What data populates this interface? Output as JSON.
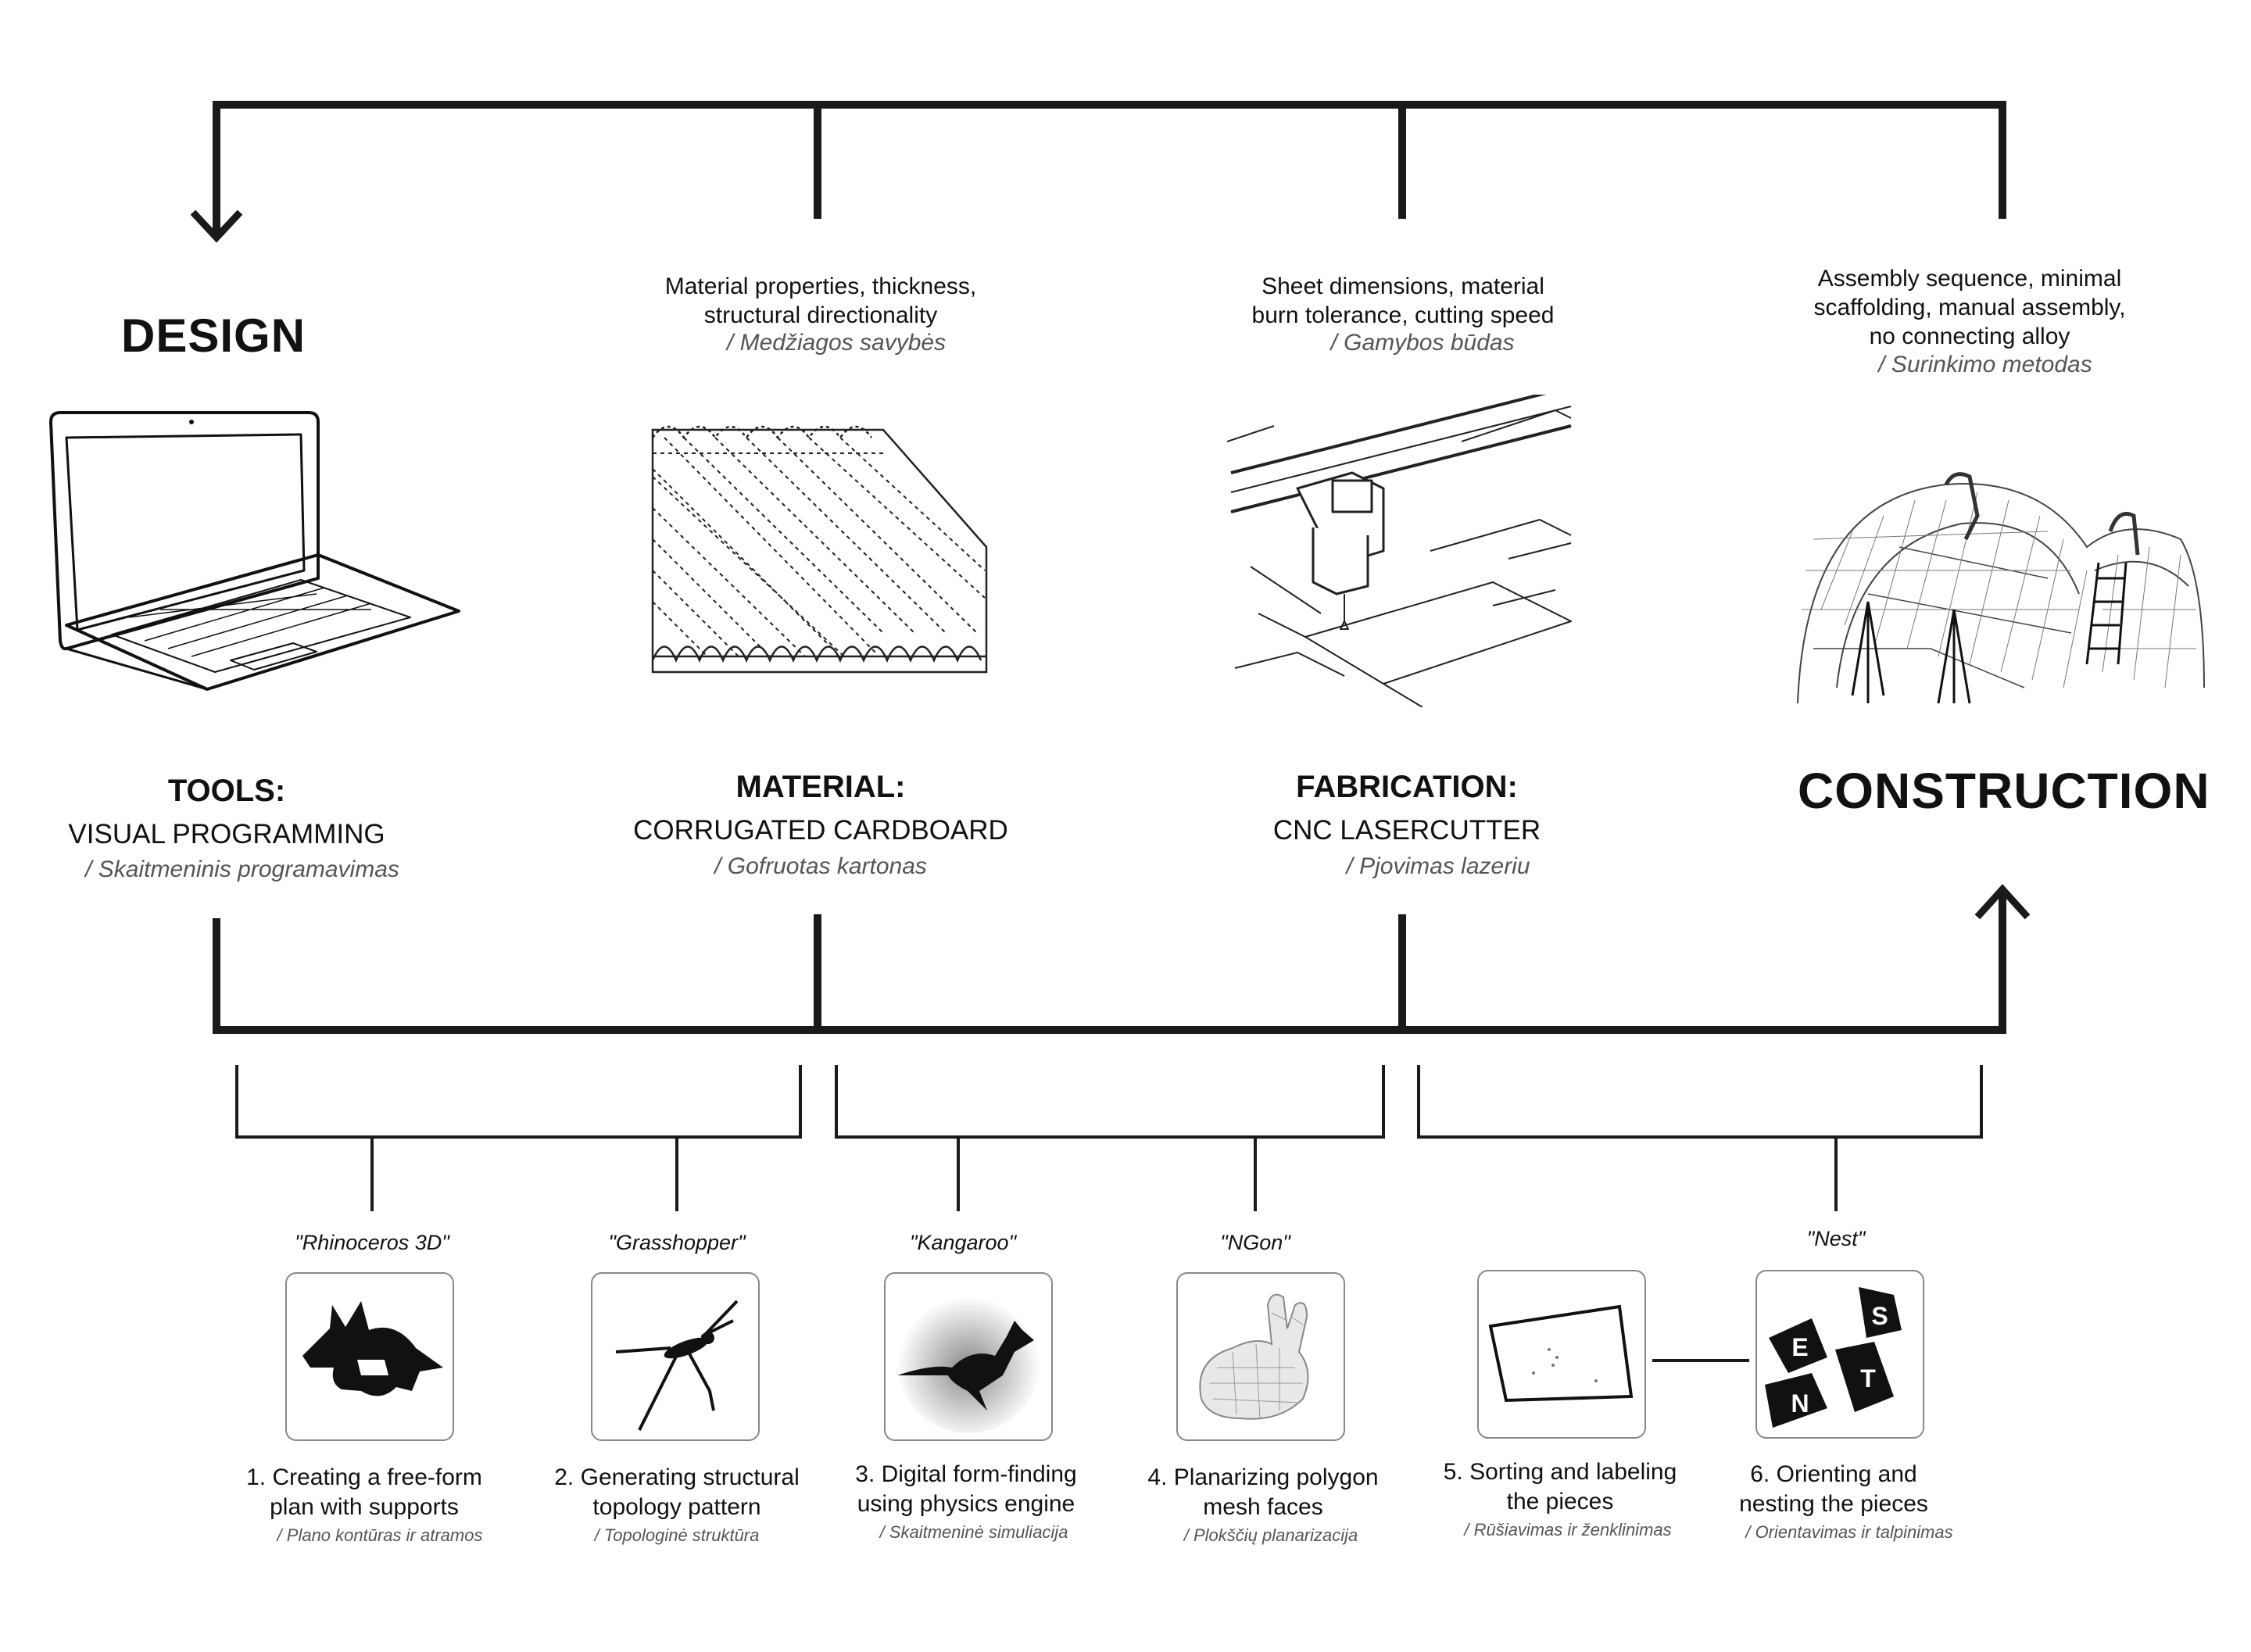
{
  "design_label": "DESIGN",
  "construction_label": "CONSTRUCTION",
  "categories": [
    {
      "title": "TOOLS:",
      "subtitle": "VISUAL PROGRAMMING",
      "note": "/ Skaitmeninis programavimas"
    },
    {
      "title": "MATERIAL:",
      "subtitle": "CORRUGATED CARDBOARD",
      "note": "/ Gofruotas kartonas",
      "props": [
        "Material properties, thickness,",
        "structural directionality"
      ],
      "props_note": "/ Medžiagos savybės"
    },
    {
      "title": "FABRICATION:",
      "subtitle": "CNC LASERCUTTER",
      "note": "/ Pjovimas lazeriu",
      "props": [
        "Sheet dimensions, material",
        "burn tolerance, cutting speed"
      ],
      "props_note": "/ Gamybos būdas"
    }
  ],
  "construction": {
    "props": [
      "Assembly sequence, minimal",
      "scaffolding, manual assembly,",
      "no connecting alloy"
    ],
    "props_note": "/ Surinkimo metodas"
  },
  "tools": [
    {
      "name": "\"Rhinoceros 3D\"",
      "icon": "rhino-icon",
      "step": [
        "1.  Creating a free-form",
        "plan with supports"
      ],
      "note": "/ Plano kontūras ir atramos"
    },
    {
      "name": "\"Grasshopper\"",
      "icon": "grasshopper-icon",
      "step": [
        "2.  Generating structural",
        "topology pattern"
      ],
      "note": "/ Topologinė struktūra"
    },
    {
      "name": "\"Kangaroo\"",
      "icon": "kangaroo-icon",
      "step": [
        "3.  Digital form-finding",
        "using physics engine"
      ],
      "note": "/ Skaitmeninė simuliacija"
    },
    {
      "name": "\"NGon\"",
      "icon": "bunny-mesh-icon",
      "step": [
        "4.  Planarizing polygon",
        "mesh faces"
      ],
      "note": "/ Plokščių planarizacija"
    },
    {
      "name": "",
      "icon": "labeled-piece-icon",
      "step": [
        "5.  Sorting and labeling",
        "the pieces"
      ],
      "note": "/ Rūšiavimas ir ženklinimas"
    },
    {
      "name": "\"Nest\"",
      "icon": "nest-pieces-icon",
      "step": [
        "6.  Orienting and",
        "nesting the pieces"
      ],
      "note": "/ Orientavimas ir talpinimas"
    }
  ],
  "nest_letters": [
    "S",
    "E",
    "T",
    "N"
  ]
}
